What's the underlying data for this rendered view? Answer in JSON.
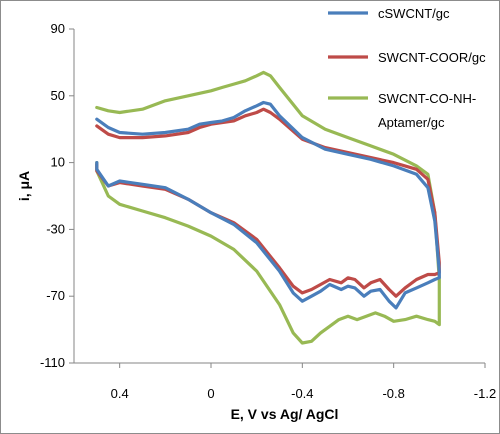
{
  "chart_data": {
    "type": "line",
    "title": "",
    "xlabel": "E, V vs Ag/ AgCl",
    "ylabel": "i, μA",
    "x_reversed": true,
    "xlim": [
      0.6,
      -1.2
    ],
    "ylim": [
      -110,
      90
    ],
    "x_ticks": [
      0.4,
      0,
      -0.4,
      -0.8,
      -1.2
    ],
    "x_tick_labels": [
      "0.4",
      "0",
      "-0.4",
      "-0.8",
      "-1.2"
    ],
    "y_ticks": [
      90,
      50,
      10,
      -30,
      -70,
      -110
    ],
    "y_tick_labels": [
      "90",
      "50",
      "10",
      "-30",
      "-70",
      "-110"
    ],
    "grid": false,
    "legend_position": "top-right",
    "series": [
      {
        "name": "cSWCNT/gc",
        "color": "#4a7ebb",
        "points": [
          [
            0.5,
            36
          ],
          [
            0.45,
            31
          ],
          [
            0.4,
            28
          ],
          [
            0.3,
            27
          ],
          [
            0.2,
            28
          ],
          [
            0.1,
            30
          ],
          [
            0.05,
            33
          ],
          [
            0,
            34
          ],
          [
            -0.05,
            35
          ],
          [
            -0.1,
            37
          ],
          [
            -0.15,
            41
          ],
          [
            -0.2,
            44
          ],
          [
            -0.23,
            46
          ],
          [
            -0.26,
            45
          ],
          [
            -0.3,
            38
          ],
          [
            -0.4,
            25
          ],
          [
            -0.5,
            18
          ],
          [
            -0.6,
            15
          ],
          [
            -0.7,
            12
          ],
          [
            -0.8,
            8
          ],
          [
            -0.9,
            3
          ],
          [
            -0.95,
            -5
          ],
          [
            -0.98,
            -25
          ],
          [
            -1.0,
            -55
          ],
          [
            -1.0,
            -59
          ],
          [
            -0.98,
            -60
          ],
          [
            -0.95,
            -62
          ],
          [
            -0.9,
            -65
          ],
          [
            -0.85,
            -68
          ],
          [
            -0.81,
            -77
          ],
          [
            -0.78,
            -73
          ],
          [
            -0.74,
            -66
          ],
          [
            -0.7,
            -67
          ],
          [
            -0.67,
            -70
          ],
          [
            -0.63,
            -65
          ],
          [
            -0.6,
            -64
          ],
          [
            -0.57,
            -66
          ],
          [
            -0.52,
            -63
          ],
          [
            -0.48,
            -67
          ],
          [
            -0.44,
            -70
          ],
          [
            -0.4,
            -73
          ],
          [
            -0.36,
            -68
          ],
          [
            -0.3,
            -55
          ],
          [
            -0.2,
            -38
          ],
          [
            -0.1,
            -27
          ],
          [
            0,
            -20
          ],
          [
            0.1,
            -12
          ],
          [
            0.2,
            -5
          ],
          [
            0.3,
            -3
          ],
          [
            0.4,
            -1
          ],
          [
            0.45,
            -4
          ],
          [
            0.5,
            6
          ],
          [
            0.5,
            10
          ]
        ]
      },
      {
        "name": "SWCNT-COOR/gc",
        "color": "#be4b48",
        "points": [
          [
            0.5,
            32
          ],
          [
            0.45,
            27
          ],
          [
            0.4,
            25
          ],
          [
            0.3,
            25
          ],
          [
            0.2,
            26
          ],
          [
            0.1,
            28
          ],
          [
            0.05,
            31
          ],
          [
            0,
            33
          ],
          [
            -0.05,
            34
          ],
          [
            -0.1,
            35
          ],
          [
            -0.15,
            38
          ],
          [
            -0.2,
            40
          ],
          [
            -0.23,
            42
          ],
          [
            -0.26,
            40
          ],
          [
            -0.3,
            36
          ],
          [
            -0.4,
            24
          ],
          [
            -0.5,
            19
          ],
          [
            -0.6,
            16
          ],
          [
            -0.7,
            13
          ],
          [
            -0.8,
            10
          ],
          [
            -0.9,
            6
          ],
          [
            -0.95,
            0
          ],
          [
            -0.98,
            -20
          ],
          [
            -1.0,
            -50
          ],
          [
            -1.0,
            -56
          ],
          [
            -0.98,
            -57
          ],
          [
            -0.95,
            -57
          ],
          [
            -0.9,
            -60
          ],
          [
            -0.85,
            -65
          ],
          [
            -0.81,
            -70
          ],
          [
            -0.78,
            -66
          ],
          [
            -0.74,
            -60
          ],
          [
            -0.7,
            -62
          ],
          [
            -0.67,
            -65
          ],
          [
            -0.63,
            -60
          ],
          [
            -0.6,
            -59
          ],
          [
            -0.57,
            -62
          ],
          [
            -0.52,
            -60
          ],
          [
            -0.48,
            -63
          ],
          [
            -0.44,
            -66
          ],
          [
            -0.4,
            -68
          ],
          [
            -0.36,
            -64
          ],
          [
            -0.3,
            -53
          ],
          [
            -0.2,
            -36
          ],
          [
            -0.1,
            -26
          ],
          [
            0,
            -20
          ],
          [
            0.1,
            -12
          ],
          [
            0.2,
            -6
          ],
          [
            0.3,
            -4
          ],
          [
            0.4,
            -2
          ],
          [
            0.45,
            -4
          ],
          [
            0.5,
            5
          ],
          [
            0.5,
            9
          ]
        ]
      },
      {
        "name": "SWCNT-CO-NH-Aptamer/gc",
        "color": "#98b954",
        "points": [
          [
            0.5,
            43
          ],
          [
            0.45,
            41
          ],
          [
            0.4,
            40
          ],
          [
            0.3,
            42
          ],
          [
            0.2,
            47
          ],
          [
            0.1,
            50
          ],
          [
            0,
            53
          ],
          [
            -0.05,
            55
          ],
          [
            -0.1,
            57
          ],
          [
            -0.15,
            59
          ],
          [
            -0.2,
            62
          ],
          [
            -0.23,
            64
          ],
          [
            -0.26,
            62
          ],
          [
            -0.3,
            55
          ],
          [
            -0.4,
            38
          ],
          [
            -0.5,
            30
          ],
          [
            -0.6,
            25
          ],
          [
            -0.7,
            20
          ],
          [
            -0.8,
            15
          ],
          [
            -0.9,
            8
          ],
          [
            -0.95,
            3
          ],
          [
            -0.98,
            -20
          ],
          [
            -1.0,
            -60
          ],
          [
            -1.0,
            -87
          ],
          [
            -0.98,
            -85
          ],
          [
            -0.95,
            -84
          ],
          [
            -0.9,
            -82
          ],
          [
            -0.85,
            -84
          ],
          [
            -0.8,
            -85
          ],
          [
            -0.76,
            -82
          ],
          [
            -0.72,
            -80
          ],
          [
            -0.68,
            -82
          ],
          [
            -0.64,
            -84
          ],
          [
            -0.6,
            -82
          ],
          [
            -0.56,
            -84
          ],
          [
            -0.52,
            -88
          ],
          [
            -0.48,
            -92
          ],
          [
            -0.44,
            -97
          ],
          [
            -0.4,
            -98
          ],
          [
            -0.36,
            -92
          ],
          [
            -0.3,
            -75
          ],
          [
            -0.2,
            -55
          ],
          [
            -0.1,
            -42
          ],
          [
            0,
            -34
          ],
          [
            0.1,
            -28
          ],
          [
            0.2,
            -23
          ],
          [
            0.3,
            -19
          ],
          [
            0.4,
            -15
          ],
          [
            0.45,
            -10
          ],
          [
            0.5,
            5
          ],
          [
            0.5,
            10
          ]
        ]
      }
    ]
  }
}
